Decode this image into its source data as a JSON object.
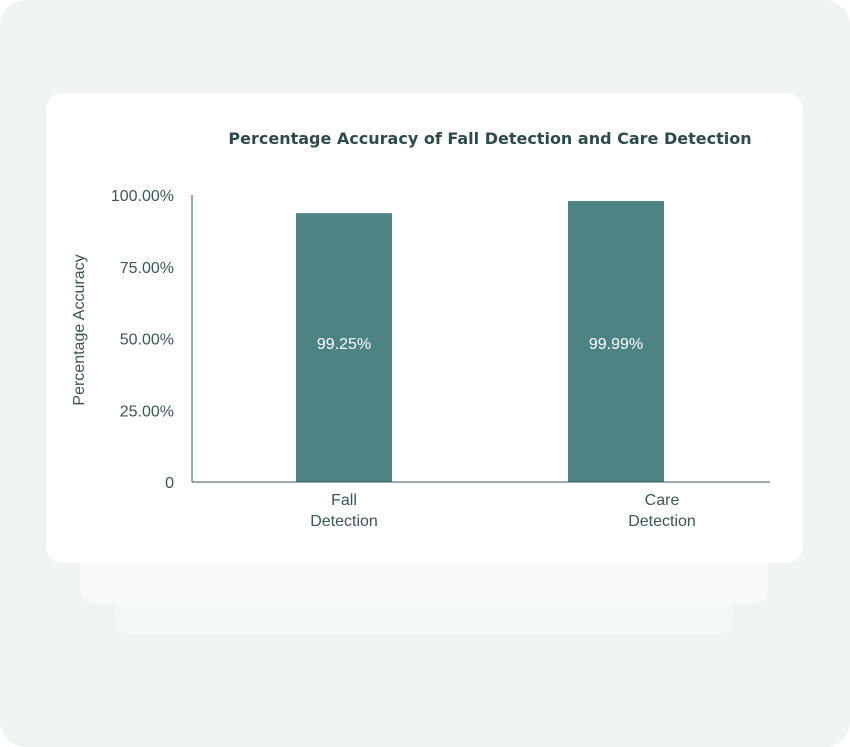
{
  "chart_data": {
    "type": "bar",
    "title": "Percentage Accuracy of Fall Detection and Care Detection",
    "xlabel": "",
    "ylabel": "Percentage Accuracy",
    "ylim": [
      0,
      100
    ],
    "yticks": [
      {
        "value": 0,
        "label": "0"
      },
      {
        "value": 25,
        "label": "25.00%"
      },
      {
        "value": 50,
        "label": "50.00%"
      },
      {
        "value": 75,
        "label": "75.00%"
      },
      {
        "value": 100,
        "label": "100.00%"
      }
    ],
    "categories": [
      [
        "Fall",
        "Detection"
      ],
      [
        "Care",
        "Detection"
      ]
    ],
    "values": [
      99.25,
      99.99
    ],
    "data_labels": [
      "99.25%",
      "99.99%"
    ],
    "bar_color": "#4e8384",
    "grid": false,
    "legend": "none"
  }
}
